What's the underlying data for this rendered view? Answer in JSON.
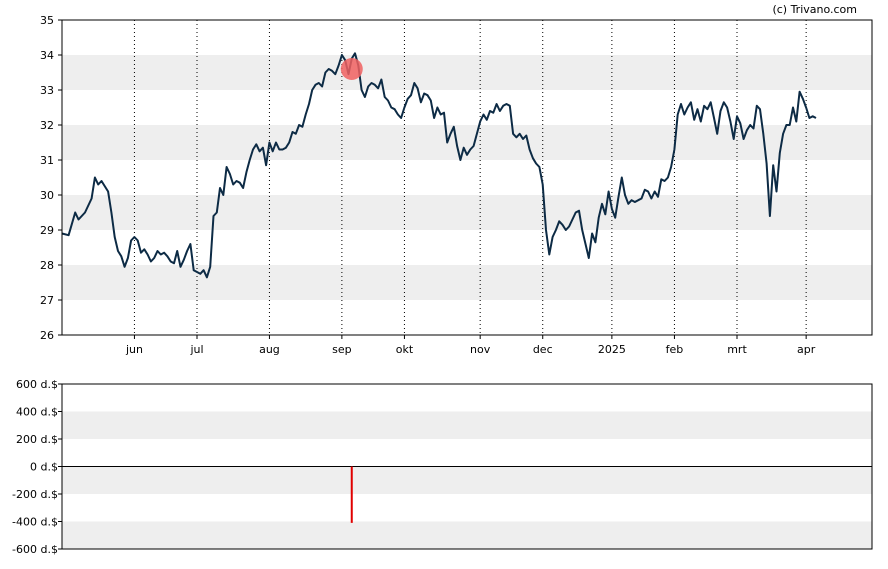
{
  "credit": "(c) Trivano.com",
  "colors": {
    "band": "#eeeeee",
    "price_line": "#0d2b45",
    "marker": "#f06060",
    "bar": "#e00000",
    "axis": "#000000"
  },
  "chart_data": [
    {
      "type": "line",
      "name": "price",
      "ylim": [
        26,
        35
      ],
      "yticks": [
        26,
        27,
        28,
        29,
        30,
        31,
        32,
        33,
        34,
        35
      ],
      "grid": true,
      "x_range": [
        0,
        246
      ],
      "month_ticks": [
        {
          "label": "jun",
          "x": 22
        },
        {
          "label": "jul",
          "x": 41
        },
        {
          "label": "aug",
          "x": 63
        },
        {
          "label": "sep",
          "x": 85
        },
        {
          "label": "okt",
          "x": 104
        },
        {
          "label": "nov",
          "x": 127
        },
        {
          "label": "dec",
          "x": 146
        },
        {
          "label": "2025",
          "x": 167
        },
        {
          "label": "feb",
          "x": 186
        },
        {
          "label": "mrt",
          "x": 205
        },
        {
          "label": "apr",
          "x": 226
        }
      ],
      "series": [
        {
          "values": [
            [
              0,
              28.9
            ],
            [
              2,
              28.85
            ],
            [
              4,
              29.5
            ],
            [
              5,
              29.3
            ],
            [
              7,
              29.5
            ],
            [
              9,
              29.9
            ],
            [
              10,
              30.5
            ],
            [
              11,
              30.3
            ],
            [
              12,
              30.4
            ],
            [
              14,
              30.1
            ],
            [
              15,
              29.5
            ],
            [
              16,
              28.8
            ],
            [
              17,
              28.4
            ],
            [
              18,
              28.25
            ],
            [
              19,
              27.95
            ],
            [
              20,
              28.2
            ],
            [
              21,
              28.7
            ],
            [
              22,
              28.8
            ],
            [
              23,
              28.7
            ],
            [
              24,
              28.35
            ],
            [
              25,
              28.45
            ],
            [
              26,
              28.3
            ],
            [
              27,
              28.1
            ],
            [
              28,
              28.2
            ],
            [
              29,
              28.4
            ],
            [
              30,
              28.3
            ],
            [
              31,
              28.35
            ],
            [
              32,
              28.25
            ],
            [
              33,
              28.1
            ],
            [
              34,
              28.05
            ],
            [
              35,
              28.4
            ],
            [
              36,
              27.95
            ],
            [
              37,
              28.15
            ],
            [
              38,
              28.4
            ],
            [
              39,
              28.6
            ],
            [
              40,
              27.85
            ],
            [
              41,
              27.8
            ],
            [
              42,
              27.75
            ],
            [
              43,
              27.85
            ],
            [
              44,
              27.65
            ],
            [
              45,
              27.95
            ],
            [
              46,
              29.4
            ],
            [
              47,
              29.5
            ],
            [
              48,
              30.2
            ],
            [
              49,
              30.0
            ],
            [
              50,
              30.8
            ],
            [
              51,
              30.6
            ],
            [
              52,
              30.3
            ],
            [
              53,
              30.4
            ],
            [
              54,
              30.35
            ],
            [
              55,
              30.2
            ],
            [
              56,
              30.65
            ],
            [
              57,
              31.0
            ],
            [
              58,
              31.3
            ],
            [
              59,
              31.45
            ],
            [
              60,
              31.25
            ],
            [
              61,
              31.35
            ],
            [
              62,
              30.85
            ],
            [
              63,
              31.5
            ],
            [
              64,
              31.25
            ],
            [
              65,
              31.5
            ],
            [
              66,
              31.3
            ],
            [
              67,
              31.3
            ],
            [
              68,
              31.35
            ],
            [
              69,
              31.5
            ],
            [
              70,
              31.8
            ],
            [
              71,
              31.75
            ],
            [
              72,
              32.0
            ],
            [
              73,
              31.95
            ],
            [
              74,
              32.3
            ],
            [
              75,
              32.6
            ],
            [
              76,
              33.0
            ],
            [
              77,
              33.15
            ],
            [
              78,
              33.2
            ],
            [
              79,
              33.1
            ],
            [
              80,
              33.5
            ],
            [
              81,
              33.6
            ],
            [
              82,
              33.55
            ],
            [
              83,
              33.45
            ],
            [
              84,
              33.7
            ],
            [
              85,
              34.0
            ],
            [
              86,
              33.85
            ],
            [
              87,
              33.45
            ],
            [
              88,
              33.9
            ],
            [
              89,
              34.05
            ],
            [
              90,
              33.7
            ],
            [
              91,
              33.0
            ],
            [
              92,
              32.8
            ],
            [
              93,
              33.1
            ],
            [
              94,
              33.2
            ],
            [
              95,
              33.15
            ],
            [
              96,
              33.05
            ],
            [
              97,
              33.3
            ],
            [
              98,
              32.8
            ],
            [
              99,
              32.7
            ],
            [
              100,
              32.5
            ],
            [
              101,
              32.45
            ],
            [
              102,
              32.3
            ],
            [
              103,
              32.2
            ],
            [
              104,
              32.5
            ],
            [
              105,
              32.75
            ],
            [
              106,
              32.85
            ],
            [
              107,
              33.2
            ],
            [
              108,
              33.05
            ],
            [
              109,
              32.65
            ],
            [
              110,
              32.9
            ],
            [
              111,
              32.85
            ],
            [
              112,
              32.7
            ],
            [
              113,
              32.2
            ],
            [
              114,
              32.5
            ],
            [
              115,
              32.3
            ],
            [
              116,
              32.35
            ],
            [
              117,
              31.5
            ],
            [
              118,
              31.75
            ],
            [
              119,
              31.95
            ],
            [
              120,
              31.4
            ],
            [
              121,
              31.0
            ],
            [
              122,
              31.35
            ],
            [
              123,
              31.15
            ],
            [
              124,
              31.3
            ],
            [
              125,
              31.4
            ],
            [
              126,
              31.75
            ],
            [
              127,
              32.1
            ],
            [
              128,
              32.3
            ],
            [
              129,
              32.15
            ],
            [
              130,
              32.4
            ],
            [
              131,
              32.35
            ],
            [
              132,
              32.6
            ],
            [
              133,
              32.4
            ],
            [
              134,
              32.55
            ],
            [
              135,
              32.6
            ],
            [
              136,
              32.55
            ],
            [
              137,
              31.75
            ],
            [
              138,
              31.65
            ],
            [
              139,
              31.75
            ],
            [
              140,
              31.6
            ],
            [
              141,
              31.7
            ],
            [
              142,
              31.3
            ],
            [
              143,
              31.05
            ],
            [
              144,
              30.9
            ],
            [
              145,
              30.8
            ],
            [
              146,
              30.3
            ],
            [
              147,
              29.0
            ],
            [
              148,
              28.3
            ],
            [
              149,
              28.8
            ],
            [
              150,
              29.0
            ],
            [
              151,
              29.25
            ],
            [
              152,
              29.15
            ],
            [
              153,
              29.0
            ],
            [
              154,
              29.1
            ],
            [
              155,
              29.3
            ],
            [
              156,
              29.5
            ],
            [
              157,
              29.55
            ],
            [
              158,
              29.0
            ],
            [
              159,
              28.6
            ],
            [
              160,
              28.2
            ],
            [
              161,
              28.9
            ],
            [
              162,
              28.65
            ],
            [
              163,
              29.35
            ],
            [
              164,
              29.75
            ],
            [
              165,
              29.45
            ],
            [
              166,
              30.1
            ],
            [
              167,
              29.6
            ],
            [
              168,
              29.35
            ],
            [
              169,
              29.95
            ],
            [
              170,
              30.5
            ],
            [
              171,
              30.0
            ],
            [
              172,
              29.75
            ],
            [
              173,
              29.85
            ],
            [
              174,
              29.8
            ],
            [
              175,
              29.85
            ],
            [
              176,
              29.9
            ],
            [
              177,
              30.15
            ],
            [
              178,
              30.1
            ],
            [
              179,
              29.9
            ],
            [
              180,
              30.1
            ],
            [
              181,
              29.95
            ],
            [
              182,
              30.45
            ],
            [
              183,
              30.4
            ],
            [
              184,
              30.5
            ],
            [
              185,
              30.8
            ],
            [
              186,
              31.3
            ],
            [
              187,
              32.3
            ],
            [
              188,
              32.6
            ],
            [
              189,
              32.3
            ],
            [
              190,
              32.5
            ],
            [
              191,
              32.65
            ],
            [
              192,
              32.15
            ],
            [
              193,
              32.45
            ],
            [
              194,
              32.1
            ],
            [
              195,
              32.55
            ],
            [
              196,
              32.45
            ],
            [
              197,
              32.65
            ],
            [
              198,
              32.2
            ],
            [
              199,
              31.75
            ],
            [
              200,
              32.4
            ],
            [
              201,
              32.65
            ],
            [
              202,
              32.5
            ],
            [
              203,
              32.1
            ],
            [
              204,
              31.6
            ],
            [
              205,
              32.25
            ],
            [
              206,
              32.05
            ],
            [
              207,
              31.6
            ],
            [
              208,
              31.85
            ],
            [
              209,
              32.0
            ],
            [
              210,
              31.9
            ],
            [
              211,
              32.55
            ],
            [
              212,
              32.45
            ],
            [
              213,
              31.75
            ],
            [
              214,
              30.9
            ],
            [
              215,
              29.4
            ],
            [
              216,
              30.85
            ],
            [
              217,
              30.1
            ],
            [
              218,
              31.2
            ],
            [
              219,
              31.75
            ],
            [
              220,
              32.0
            ],
            [
              221,
              32.0
            ],
            [
              222,
              32.5
            ],
            [
              223,
              32.1
            ],
            [
              224,
              32.95
            ],
            [
              225,
              32.75
            ],
            [
              226,
              32.5
            ],
            [
              227,
              32.2
            ],
            [
              228,
              32.25
            ],
            [
              229,
              32.2
            ]
          ]
        }
      ],
      "marker": {
        "x": 88,
        "y": 33.6
      }
    },
    {
      "type": "bar",
      "name": "transactions",
      "ylim": [
        -600,
        600
      ],
      "yticks": [
        -600,
        -400,
        -200,
        0,
        200,
        400,
        600
      ],
      "ytick_labels": [
        "-600 d.$",
        "-400 d.$",
        "-200 d.$",
        "0 d.$",
        "200 d.$",
        "400 d.$",
        "600 d.$"
      ],
      "grid": true,
      "bars": [
        {
          "x": 88,
          "value": -410
        }
      ]
    }
  ]
}
